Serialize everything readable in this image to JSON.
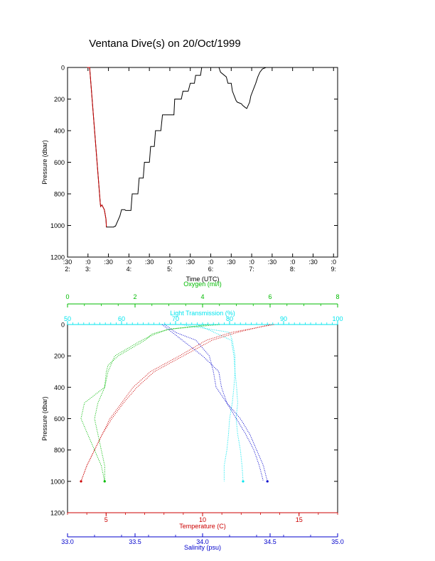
{
  "page": {
    "title": "Ventana Dive(s) on 20/Oct/1999"
  },
  "chart_data": [
    {
      "type": "line",
      "xlabel": "Time (UTC)",
      "ylabel": "Pressure (dbar)",
      "xlim": [
        2.5,
        9.1
      ],
      "ylim": [
        1200,
        0
      ],
      "x_ticks": [
        {
          "v": 2.5,
          "top": ":30",
          "bottom": "2:"
        },
        {
          "v": 3.0,
          "top": ":0",
          "bottom": "3:"
        },
        {
          "v": 3.5,
          "top": ":30",
          "bottom": ""
        },
        {
          "v": 4.0,
          "top": ":0",
          "bottom": "4:"
        },
        {
          "v": 4.5,
          "top": ":30",
          "bottom": ""
        },
        {
          "v": 5.0,
          "top": ":0",
          "bottom": "5:"
        },
        {
          "v": 5.5,
          "top": ":30",
          "bottom": ""
        },
        {
          "v": 6.0,
          "top": ":0",
          "bottom": "6:"
        },
        {
          "v": 6.5,
          "top": ":30",
          "bottom": ""
        },
        {
          "v": 7.0,
          "top": ":0",
          "bottom": "7:"
        },
        {
          "v": 7.5,
          "top": ":30",
          "bottom": ""
        },
        {
          "v": 8.0,
          "top": ":0",
          "bottom": "8:"
        },
        {
          "v": 8.5,
          "top": ":30",
          "bottom": ""
        },
        {
          "v": 9.0,
          "top": ":0",
          "bottom": "9:"
        }
      ],
      "y_ticks": [
        0,
        200,
        400,
        600,
        800,
        1000,
        1200
      ],
      "series": [
        {
          "color": "#000000",
          "x": [
            2.98,
            3.0,
            3.04,
            3.3,
            3.31,
            3.34,
            3.4,
            3.44,
            3.45,
            3.63,
            3.65,
            3.67,
            3.78,
            3.82,
            3.9,
            3.92,
            4.05,
            4.08,
            4.22,
            4.25,
            4.35,
            4.38,
            4.5,
            4.53,
            4.62,
            4.65,
            4.78,
            4.82,
            4.92,
            4.95,
            5.1,
            5.12,
            5.28,
            5.32,
            5.45,
            5.5,
            5.6,
            5.63,
            5.75,
            5.78,
            5.88,
            5.92,
            6.05,
            6.1,
            6.2,
            6.24,
            6.38,
            6.42,
            6.5,
            6.53,
            6.62,
            6.65,
            6.75,
            6.78,
            6.85,
            6.88,
            6.95,
            6.98,
            7.1,
            7.15,
            7.2,
            7.26,
            7.35,
            7.42,
            7.45,
            7.5,
            7.72,
            7.75,
            8.0,
            8.05,
            8.2,
            8.25,
            8.3,
            8.55,
            8.6
          ],
          "y": [
            0,
            0,
            0,
            860,
            880,
            870,
            900,
            960,
            1010,
            1010,
            1005,
            1005,
            940,
            900,
            900,
            905,
            905,
            800,
            800,
            700,
            700,
            600,
            600,
            500,
            500,
            400,
            400,
            300,
            300,
            300,
            300,
            200,
            200,
            150,
            150,
            100,
            100,
            50,
            50,
            0,
            0,
            0,
            0,
            0,
            0,
            30,
            60,
            100,
            100,
            150,
            210,
            220,
            230,
            240,
            255,
            260,
            220,
            180,
            100,
            60,
            30,
            10,
            0,
            0,
            0,
            0,
            0,
            0,
            0,
            0,
            0,
            0,
            0,
            0,
            0
          ]
        },
        {
          "color": "#cc0000",
          "x": [
            2.98,
            3.0,
            3.04,
            3.3,
            3.31,
            3.34,
            3.4,
            3.44,
            3.45
          ],
          "y": [
            0,
            0,
            0,
            860,
            880,
            870,
            900,
            960,
            1010
          ]
        }
      ]
    },
    {
      "type": "scatter",
      "ylabel": "Pressure (dbar)",
      "ylim": [
        1200,
        0
      ],
      "y_ticks": [
        0,
        200,
        400,
        600,
        800,
        1000,
        1200
      ],
      "axes": [
        {
          "key": "oxygen",
          "label": "Oxygen (ml/l)",
          "color": "#00bb00",
          "position": "top-outer",
          "lim": [
            0,
            8
          ],
          "ticks": [
            0,
            2,
            4,
            6,
            8
          ]
        },
        {
          "key": "light",
          "label": "Light Transmission (%)",
          "color": "#00e5ee",
          "position": "top-inner",
          "lim": [
            50,
            100
          ],
          "ticks": [
            50,
            60,
            70,
            80,
            90,
            100
          ]
        },
        {
          "key": "temperature",
          "label": "Temperature (C)",
          "color": "#cc0000",
          "position": "bottom-inner",
          "lim": [
            3,
            17
          ],
          "ticks": [
            5,
            10,
            15
          ]
        },
        {
          "key": "salinity",
          "label": "Salinity (psu)",
          "color": "#0000cc",
          "position": "bottom-outer",
          "lim": [
            33.0,
            35.0
          ],
          "ticks": [
            "33.0",
            "33.5",
            "34.0",
            "34.5",
            "35.0"
          ]
        }
      ],
      "series": [
        {
          "axis": "oxygen",
          "color": "#00bb00",
          "down": {
            "p": [
              0,
              30,
              60,
              100,
              150,
              200,
              260,
              300,
              400,
              500,
              600,
              700,
              800,
              900,
              1000
            ],
            "v": [
              4.2,
              3.0,
              2.5,
              2.3,
              1.9,
              1.5,
              1.2,
              1.15,
              1.1,
              0.5,
              0.4,
              0.6,
              0.8,
              1.0,
              1.1
            ]
          },
          "up": {
            "p": [
              1000,
              900,
              800,
              700,
              600,
              500,
              400,
              300,
              200,
              150,
              100,
              60,
              30,
              0
            ],
            "v": [
              1.1,
              1.1,
              1.0,
              0.9,
              0.8,
              0.9,
              1.1,
              1.2,
              1.4,
              1.8,
              2.2,
              2.6,
              3.0,
              4.5
            ]
          }
        },
        {
          "axis": "light",
          "color": "#00e5ee",
          "down": {
            "p": [
              0,
              50,
              100,
              200,
              300,
              400,
              500,
              600,
              700,
              800,
              900,
              1000
            ],
            "v": [
              71,
              80,
              80.5,
              81,
              81,
              81.3,
              81.5,
              81.2,
              81.5,
              82,
              82.3,
              82.5
            ]
          },
          "up": {
            "p": [
              1000,
              900,
              800,
              700,
              600,
              500,
              400,
              300,
              200,
              100,
              0
            ],
            "v": [
              79,
              79,
              79.5,
              79.8,
              80,
              80.5,
              80.8,
              81,
              80.8,
              80.3,
              74
            ]
          }
        },
        {
          "axis": "temperature",
          "color": "#cc0000",
          "down": {
            "p": [
              0,
              50,
              100,
              200,
              300,
              400,
              500,
              600,
              700,
              800,
              900,
              1000
            ],
            "v": [
              13.7,
              11.5,
              10.2,
              8.8,
              7.3,
              6.4,
              5.8,
              5.2,
              4.8,
              4.4,
              4.0,
              3.7
            ]
          },
          "up": {
            "p": [
              1000,
              900,
              800,
              700,
              600,
              500,
              400,
              300,
              200,
              100,
              50,
              0
            ],
            "v": [
              3.7,
              4.0,
              4.4,
              4.8,
              5.3,
              5.9,
              6.6,
              7.5,
              9.0,
              10.5,
              11.8,
              13.5
            ]
          }
        },
        {
          "axis": "salinity",
          "color": "#0000cc",
          "down": {
            "p": [
              0,
              50,
              100,
              200,
              300,
              400,
              500,
              600,
              700,
              800,
              900,
              1000
            ],
            "v": [
              33.72,
              33.8,
              33.95,
              34.05,
              34.08,
              34.1,
              34.18,
              34.28,
              34.35,
              34.4,
              34.45,
              34.48
            ]
          },
          "up": {
            "p": [
              1000,
              900,
              800,
              700,
              600,
              500,
              400,
              300,
              200,
              100,
              0
            ],
            "v": [
              34.45,
              34.42,
              34.38,
              34.32,
              34.25,
              34.18,
              34.14,
              34.12,
              34.0,
              33.85,
              33.7
            ]
          }
        }
      ]
    }
  ]
}
